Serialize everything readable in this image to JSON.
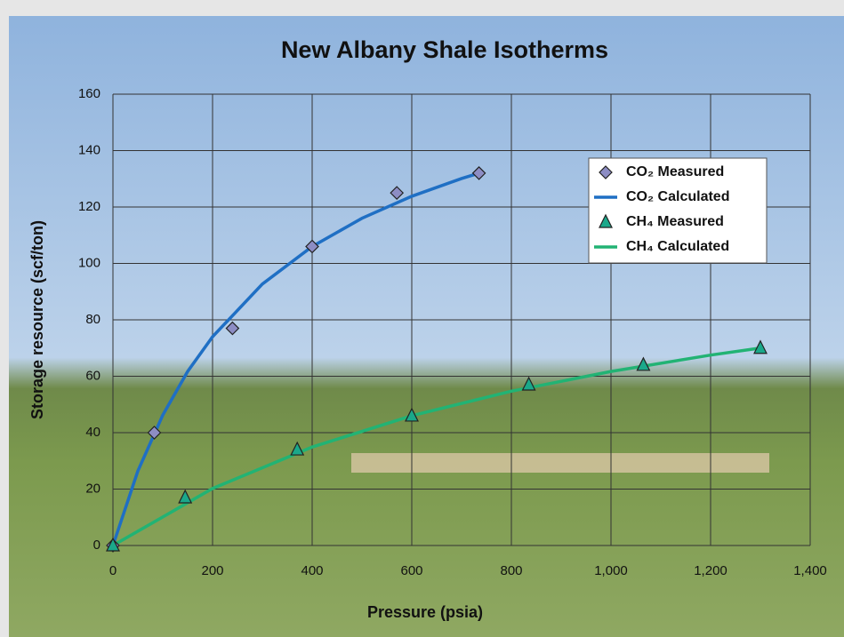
{
  "chart_data": {
    "type": "scatter",
    "title": "New Albany Shale Isotherms",
    "x_label": "Pressure (psia)",
    "y_label": "Storage resource (scf/ton)",
    "xlim": [
      0,
      1400
    ],
    "ylim": [
      0,
      160
    ],
    "xticks": [
      0,
      200,
      400,
      600,
      800,
      {
        "value": 1000,
        "label": "1,000"
      },
      {
        "value": 1200,
        "label": "1,200"
      },
      {
        "value": 1400,
        "label": "1,400"
      }
    ],
    "yticks": [
      0,
      20,
      40,
      60,
      80,
      100,
      120,
      140,
      160
    ],
    "grid": true,
    "legend": "upper right",
    "series": [
      {
        "name": "CO₂ Measured",
        "kind": "marker",
        "marker": "diamond",
        "color": "#8d8dc4",
        "x": [
          0,
          83,
          240,
          400,
          570,
          735
        ],
        "values": [
          0,
          40,
          77,
          106,
          125,
          132
        ]
      },
      {
        "name": "CO₂ Calculated",
        "kind": "line",
        "color": "#1f6fc4",
        "x": [
          0,
          50,
          100,
          150,
          200,
          300,
          400,
          500,
          600,
          700,
          735
        ],
        "values": [
          0,
          26.4,
          46.2,
          61.7,
          74.0,
          92.7,
          106.0,
          116.0,
          123.8,
          130.1,
          132.0
        ]
      },
      {
        "name": "CH₄ Measured",
        "kind": "marker",
        "marker": "triangle",
        "color": "#1aa88a",
        "x": [
          0,
          145,
          370,
          600,
          835,
          1065,
          1300
        ],
        "values": [
          0,
          17,
          34,
          46,
          57,
          64,
          70
        ]
      },
      {
        "name": "CH₄ Calculated",
        "kind": "line",
        "color": "#22b374",
        "x": [
          0,
          200,
          400,
          600,
          800,
          1000,
          1200,
          1300
        ],
        "values": [
          0,
          20.2,
          34.9,
          46.0,
          54.7,
          61.7,
          67.5,
          70.0
        ]
      }
    ]
  }
}
